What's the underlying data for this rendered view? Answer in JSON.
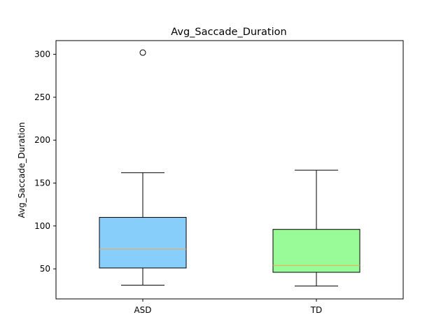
{
  "chart_data": {
    "type": "box",
    "title": "Avg_Saccade_Duration",
    "xlabel": "",
    "ylabel": "Avg_Saccade_Duration",
    "ylim": [
      15,
      316
    ],
    "yticks": [
      50,
      100,
      150,
      200,
      250,
      300
    ],
    "grid": false,
    "categories": [
      "ASD",
      "TD"
    ],
    "boxes": [
      {
        "category": "ASD",
        "whisker_low": 31,
        "q1": 51,
        "median": 73,
        "q3": 110,
        "whisker_high": 162,
        "outliers": [
          302
        ],
        "color": "#87cefa"
      },
      {
        "category": "TD",
        "whisker_low": 30,
        "q1": 46,
        "median": 54,
        "q3": 96,
        "whisker_high": 165,
        "outliers": [],
        "color": "#98fb98"
      }
    ],
    "median_color": "#f5a34a"
  }
}
